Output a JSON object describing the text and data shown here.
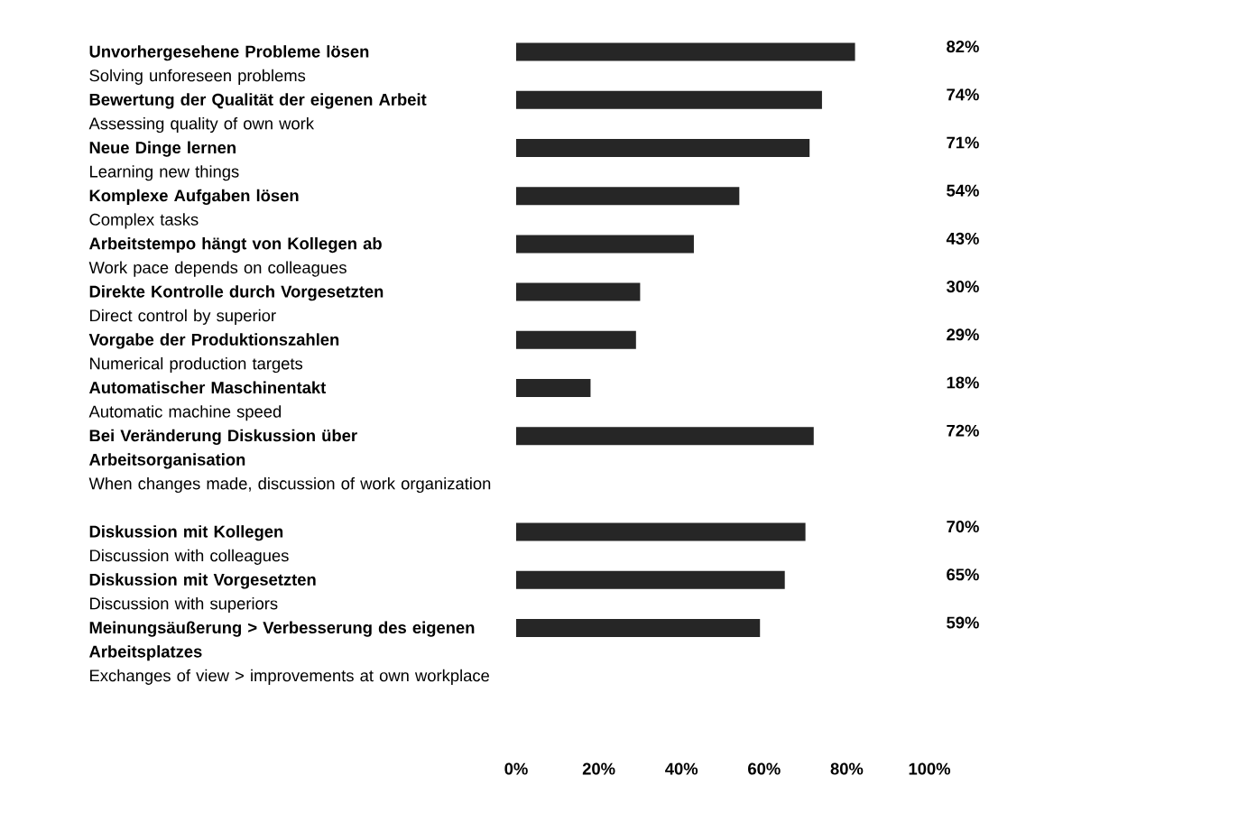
{
  "chart_data": {
    "type": "bar",
    "orientation": "horizontal",
    "categories": [
      "**Unvorhergesehene Probleme lösen**\nSolving unforeseen problems",
      "**Bewertung der Qualität der eigenen Arbeit**\nAssessing quality of own work",
      "**Neue Dinge lernen**\nLearning new things",
      "**Komplexe Aufgaben lösen**\nComplex tasks",
      "**Arbeitstempo hängt von Kollegen ab**\nWork pace depends on colleagues",
      "**Direkte Kontrolle durch Vorgesetzten**\nDirect control by superior",
      "**Vorgabe der Produktionszahlen**\nNumerical production targets",
      "**Automatischer Maschinentakt**\nAutomatic machine speed",
      "**Bei Veränderung Diskussion über Arbeitsorganisation**\nWhen changes made, discussion of work organization",
      "**Diskussion mit Kollegen**\nDiscussion with colleagues",
      "**Diskussion mit Vorgesetzten**\nDiscussion with superiors",
      "**Meinungsäußerung > Verbesserung des eigenen Arbeitsplatzes**\nExchanges of view > improvements at own workplace"
    ],
    "values": [
      82,
      74,
      71,
      54,
      43,
      30,
      29,
      18,
      72,
      70,
      65,
      59
    ],
    "value_labels": [
      "82%",
      "74%",
      "71%",
      "54%",
      "43%",
      "30%",
      "29%",
      "18%",
      "72%",
      "70%",
      "65%",
      "59%"
    ],
    "color": "#262626",
    "xlim": [
      0,
      100
    ],
    "xticks": [
      {
        "value": 0,
        "label": "0%"
      },
      {
        "value": 20,
        "label": "20%"
      },
      {
        "value": 40,
        "label": "40%"
      },
      {
        "value": 60,
        "label": "60%"
      },
      {
        "value": 80,
        "label": "80%"
      },
      {
        "value": 100,
        "label": "100%"
      }
    ],
    "grid": false
  }
}
